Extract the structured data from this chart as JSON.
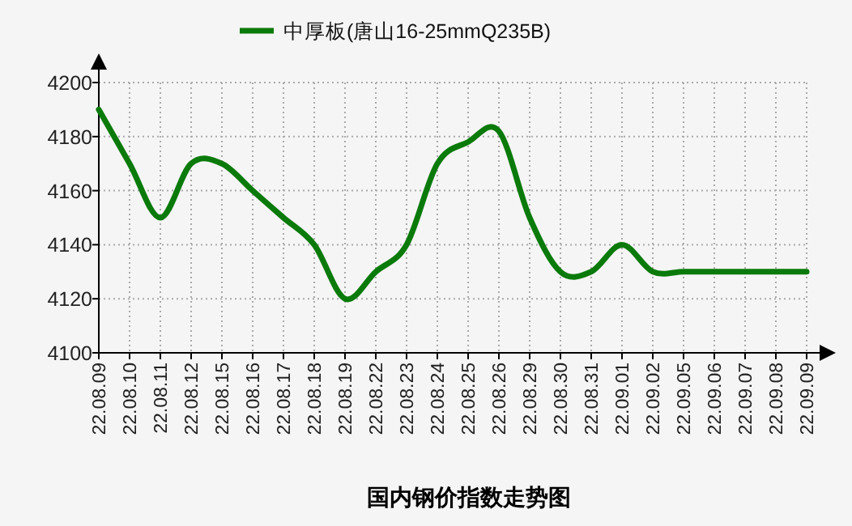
{
  "chart_data": {
    "type": "line",
    "title": "国内钢价指数走势图",
    "categories": [
      "22.08.09",
      "22.08.10",
      "22.08.11",
      "22.08.12",
      "22.08.15",
      "22.08.16",
      "22.08.17",
      "22.08.18",
      "22.08.19",
      "22.08.22",
      "22.08.23",
      "22.08.24",
      "22.08.25",
      "22.08.26",
      "22.08.29",
      "22.08.30",
      "22.08.31",
      "22.09.01",
      "22.09.02",
      "22.09.05",
      "22.09.06",
      "22.09.07",
      "22.09.08",
      "22.09.09"
    ],
    "series": [
      {
        "name": "中厚板(唐山16-25mmQ235B)",
        "color": "#0a7a0a",
        "values": [
          4190,
          4170,
          4150,
          4170,
          4170,
          4160,
          4150,
          4140,
          4120,
          4130,
          4140,
          4170,
          4178,
          4182,
          4150,
          4130,
          4130,
          4140,
          4130,
          4130,
          4130,
          4130,
          4130,
          4130
        ]
      }
    ],
    "ylim": [
      4100,
      4200
    ],
    "yticks": [
      4100,
      4120,
      4140,
      4160,
      4180,
      4200
    ],
    "grid": true,
    "legend": "top",
    "marker": "none",
    "line_style": "solid"
  }
}
